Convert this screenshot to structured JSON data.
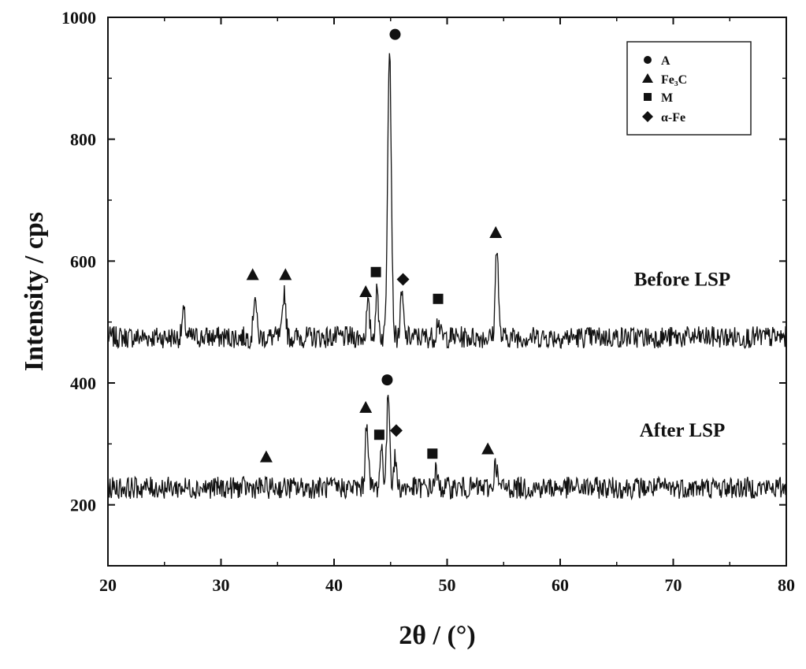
{
  "chart_data": {
    "type": "line",
    "title": "",
    "xlabel": "2θ / (°)",
    "ylabel": "Intensity / cps",
    "xlim": [
      20,
      80
    ],
    "ylim": [
      100,
      1000
    ],
    "x_ticks": [
      20,
      30,
      40,
      50,
      60,
      70,
      80
    ],
    "y_ticks": [
      200,
      400,
      600,
      800,
      1000
    ],
    "x_tick_labels": [
      "20",
      "30",
      "40",
      "50",
      "60",
      "70",
      "80"
    ],
    "y_tick_labels": [
      "200",
      "400",
      "600",
      "800",
      "1000"
    ],
    "grid": false,
    "legend_position": "top-right",
    "legend": [
      {
        "marker": "circle",
        "label": "A"
      },
      {
        "marker": "triangle",
        "label": "Fe₃C"
      },
      {
        "marker": "square",
        "label": "M"
      },
      {
        "marker": "diamond",
        "label": "α-Fe"
      }
    ],
    "series": [
      {
        "name": "Before LSP",
        "baseline": 475,
        "noise_amplitude": 18,
        "peaks": [
          {
            "x": 26.7,
            "height": 515
          },
          {
            "x": 33.0,
            "height": 548
          },
          {
            "x": 35.6,
            "height": 553
          },
          {
            "x": 43.0,
            "height": 528
          },
          {
            "x": 43.8,
            "height": 550
          },
          {
            "x": 44.9,
            "height": 958
          },
          {
            "x": 46.0,
            "height": 545
          },
          {
            "x": 49.2,
            "height": 505
          },
          {
            "x": 54.4,
            "height": 630
          }
        ]
      },
      {
        "name": "After LSP",
        "baseline": 228,
        "noise_amplitude": 18,
        "peaks": [
          {
            "x": 42.9,
            "height": 340
          },
          {
            "x": 44.2,
            "height": 295
          },
          {
            "x": 44.8,
            "height": 385
          },
          {
            "x": 45.4,
            "height": 275
          },
          {
            "x": 49.0,
            "height": 255
          },
          {
            "x": 54.3,
            "height": 270
          }
        ]
      }
    ],
    "annotations": [
      {
        "trace": "Before LSP",
        "marker": "circle",
        "x": 45.4,
        "y": 972
      },
      {
        "trace": "Before LSP",
        "marker": "triangle",
        "x": 32.8,
        "y": 578
      },
      {
        "trace": "Before LSP",
        "marker": "triangle",
        "x": 35.7,
        "y": 578
      },
      {
        "trace": "Before LSP",
        "marker": "triangle",
        "x": 42.8,
        "y": 550
      },
      {
        "trace": "Before LSP",
        "marker": "square",
        "x": 43.7,
        "y": 582
      },
      {
        "trace": "Before LSP",
        "marker": "diamond",
        "x": 46.1,
        "y": 570
      },
      {
        "trace": "Before LSP",
        "marker": "square",
        "x": 49.2,
        "y": 538
      },
      {
        "trace": "Before LSP",
        "marker": "triangle",
        "x": 54.3,
        "y": 647
      },
      {
        "trace": "After LSP",
        "marker": "circle",
        "x": 44.7,
        "y": 405
      },
      {
        "trace": "After LSP",
        "marker": "triangle",
        "x": 42.8,
        "y": 360
      },
      {
        "trace": "After LSP",
        "marker": "square",
        "x": 44.0,
        "y": 315
      },
      {
        "trace": "After LSP",
        "marker": "diamond",
        "x": 45.5,
        "y": 322
      },
      {
        "trace": "After LSP",
        "marker": "triangle",
        "x": 34.0,
        "y": 279
      },
      {
        "trace": "After LSP",
        "marker": "square",
        "x": 48.7,
        "y": 284
      },
      {
        "trace": "After LSP",
        "marker": "triangle",
        "x": 53.6,
        "y": 292
      }
    ],
    "trace_labels": [
      {
        "text": "Before LSP",
        "x": 70.8,
        "y": 560
      },
      {
        "text": "After LSP",
        "x": 70.8,
        "y": 312
      }
    ]
  }
}
